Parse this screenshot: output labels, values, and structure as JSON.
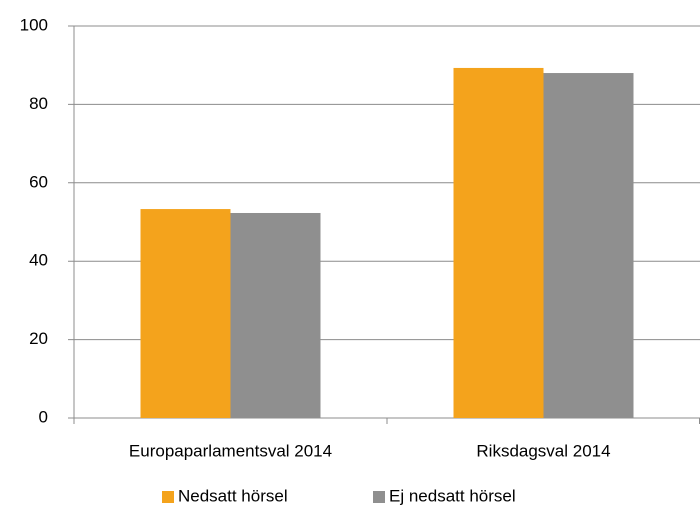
{
  "chart_data": {
    "type": "bar",
    "categories": [
      "Europaparlamentsval 2014",
      "Riksdagsval 2014"
    ],
    "series": [
      {
        "name": "Nedsatt hörsel",
        "color": "#f4a31c",
        "values": [
          53.3,
          89.3
        ]
      },
      {
        "name": "Ej nedsatt hörsel",
        "color": "#8f8f8f",
        "values": [
          52.3,
          88.0
        ]
      }
    ],
    "ylim": [
      0,
      100
    ],
    "yticks": [
      0,
      20,
      40,
      60,
      80,
      100
    ],
    "grid": true,
    "legend": "bottom"
  }
}
